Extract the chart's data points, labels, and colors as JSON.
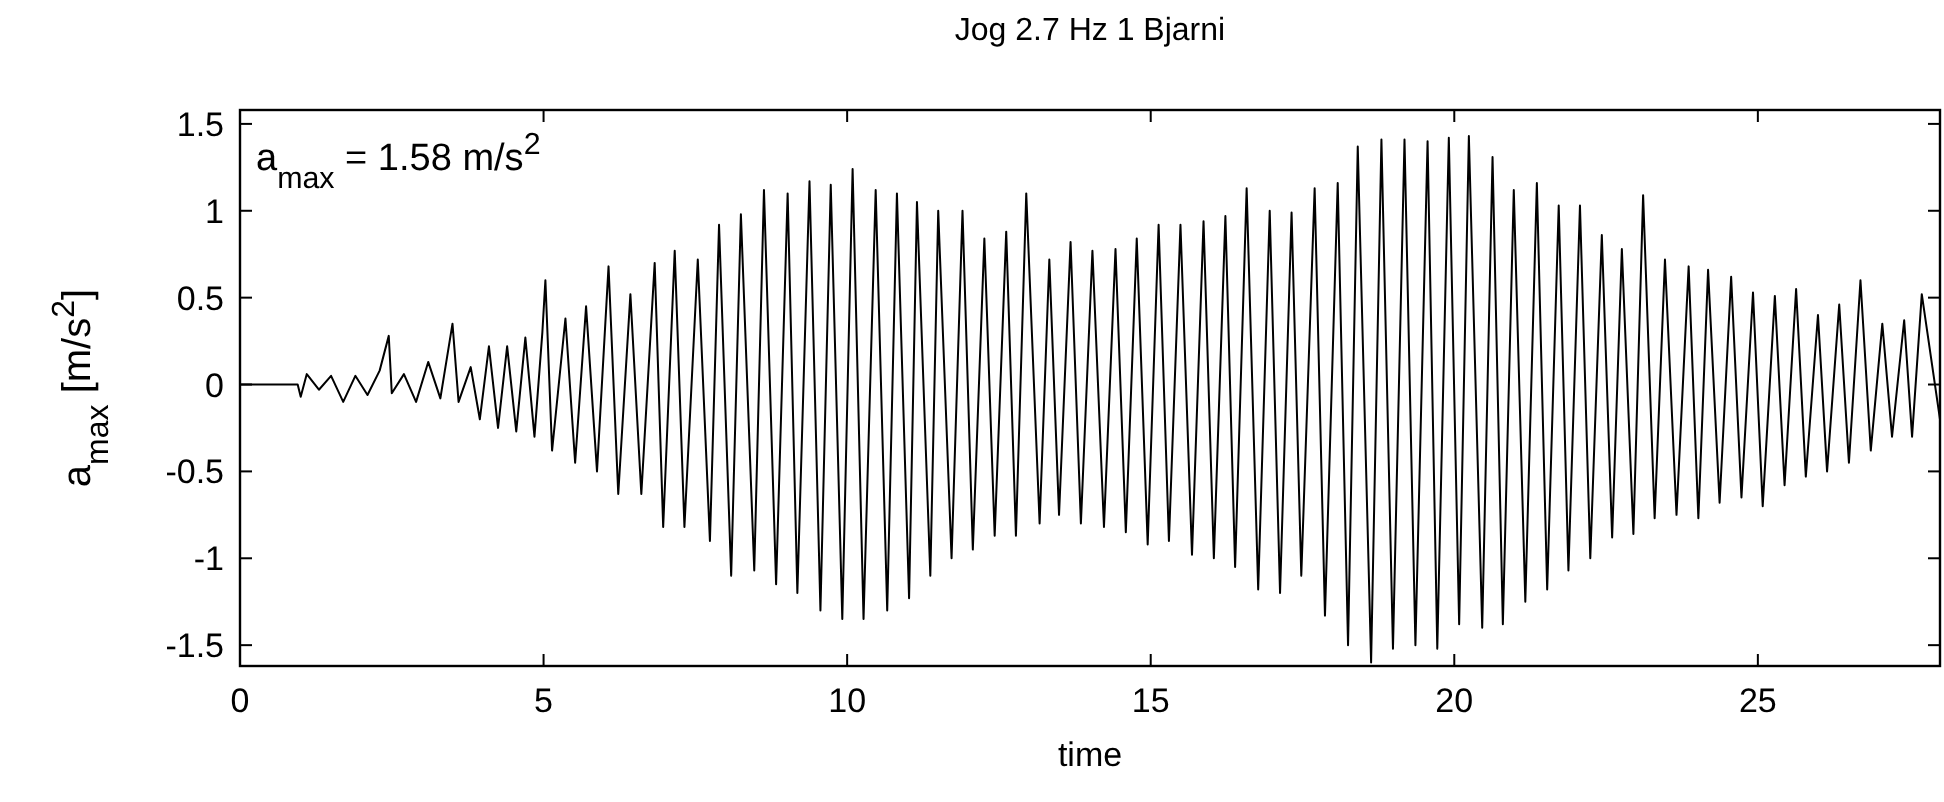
{
  "chart_data": {
    "type": "line",
    "title": "Jog 2.7 Hz 1 Bjarni",
    "xlabel": "time",
    "ylabel": "a$_{max}$ [m/s$^{2}$]",
    "annotations": [
      "a$_{max}$ = 1.58 m/s$^{2}$"
    ],
    "xlim": [
      0,
      28
    ],
    "xticks": [
      0,
      5,
      10,
      15,
      20,
      25
    ],
    "ylim": [
      -1.62,
      1.58
    ],
    "yticks": [
      -1.5,
      -1,
      -0.5,
      0,
      0.5,
      1,
      1.5
    ],
    "grid": false,
    "marker": "none",
    "line_style": "solid",
    "series": [
      {
        "color": "#000000",
        "x": [
          0,
          0.95,
          1.0,
          1.1,
          1.3,
          1.5,
          1.7,
          1.9,
          2.1,
          2.3,
          2.45,
          2.5,
          2.7,
          2.9,
          3.1,
          3.3,
          3.5,
          3.6,
          3.8,
          3.95,
          4.1,
          4.25,
          4.4,
          4.55,
          4.7,
          4.85,
          4.98,
          5.03,
          5.14,
          5.36,
          5.52,
          5.7,
          5.88,
          6.07,
          6.23,
          6.43,
          6.61,
          6.83,
          6.97,
          7.16,
          7.32,
          7.54,
          7.74,
          7.89,
          8.09,
          8.25,
          8.47,
          8.63,
          8.83,
          9.02,
          9.18,
          9.38,
          9.56,
          9.73,
          9.92,
          10.09,
          10.27,
          10.47,
          10.66,
          10.82,
          11.02,
          11.15,
          11.37,
          11.5,
          11.72,
          11.9,
          12.07,
          12.26,
          12.43,
          12.62,
          12.78,
          12.95,
          13.17,
          13.33,
          13.49,
          13.68,
          13.85,
          14.04,
          14.23,
          14.42,
          14.59,
          14.77,
          14.95,
          15.13,
          15.3,
          15.49,
          15.68,
          15.87,
          16.04,
          16.23,
          16.39,
          16.58,
          16.77,
          16.96,
          17.13,
          17.32,
          17.48,
          17.7,
          17.87,
          18.08,
          18.25,
          18.41,
          18.63,
          18.8,
          18.99,
          19.18,
          19.36,
          19.56,
          19.72,
          19.91,
          20.08,
          20.24,
          20.46,
          20.63,
          20.8,
          20.98,
          21.17,
          21.36,
          21.53,
          21.72,
          21.88,
          22.07,
          22.24,
          22.43,
          22.6,
          22.76,
          22.95,
          23.11,
          23.3,
          23.47,
          23.66,
          23.86,
          24.02,
          24.18,
          24.37,
          24.56,
          24.73,
          24.92,
          25.08,
          25.28,
          25.44,
          25.63,
          25.79,
          25.99,
          26.14,
          26.34,
          26.5,
          26.69,
          26.86,
          27.05,
          27.21,
          27.41,
          27.54,
          27.7,
          28
        ],
        "values": [
          0,
          0,
          -0.07,
          0.06,
          -0.03,
          0.05,
          -0.1,
          0.05,
          -0.06,
          0.08,
          0.28,
          -0.05,
          0.06,
          -0.1,
          0.13,
          -0.08,
          0.35,
          -0.1,
          0.1,
          -0.2,
          0.22,
          -0.25,
          0.22,
          -0.27,
          0.27,
          -0.3,
          0.3,
          0.6,
          -0.38,
          0.38,
          -0.45,
          0.45,
          -0.5,
          0.68,
          -0.63,
          0.52,
          -0.63,
          0.7,
          -0.82,
          0.77,
          -0.82,
          0.72,
          -0.9,
          0.92,
          -1.1,
          0.98,
          -1.07,
          1.12,
          -1.15,
          1.1,
          -1.2,
          1.17,
          -1.3,
          1.15,
          -1.35,
          1.24,
          -1.35,
          1.12,
          -1.3,
          1.1,
          -1.23,
          1.05,
          -1.1,
          1.0,
          -1.0,
          1.0,
          -0.95,
          0.84,
          -0.87,
          0.88,
          -0.87,
          1.1,
          -0.8,
          0.72,
          -0.75,
          0.82,
          -0.8,
          0.77,
          -0.82,
          0.78,
          -0.85,
          0.84,
          -0.92,
          0.92,
          -0.9,
          0.92,
          -0.98,
          0.94,
          -1.0,
          0.97,
          -1.05,
          1.13,
          -1.18,
          1.0,
          -1.2,
          0.99,
          -1.1,
          1.13,
          -1.33,
          1.16,
          -1.5,
          1.37,
          -1.6,
          1.41,
          -1.52,
          1.41,
          -1.5,
          1.4,
          -1.52,
          1.42,
          -1.38,
          1.43,
          -1.4,
          1.31,
          -1.38,
          1.12,
          -1.25,
          1.16,
          -1.18,
          1.03,
          -1.07,
          1.03,
          -1.0,
          0.86,
          -0.88,
          0.78,
          -0.86,
          1.09,
          -0.77,
          0.72,
          -0.75,
          0.68,
          -0.77,
          0.66,
          -0.68,
          0.62,
          -0.65,
          0.53,
          -0.7,
          0.51,
          -0.58,
          0.55,
          -0.53,
          0.4,
          -0.5,
          0.46,
          -0.45,
          0.6,
          -0.38,
          0.35,
          -0.3,
          0.37,
          -0.3,
          0.52,
          -0.2
        ]
      }
    ]
  }
}
